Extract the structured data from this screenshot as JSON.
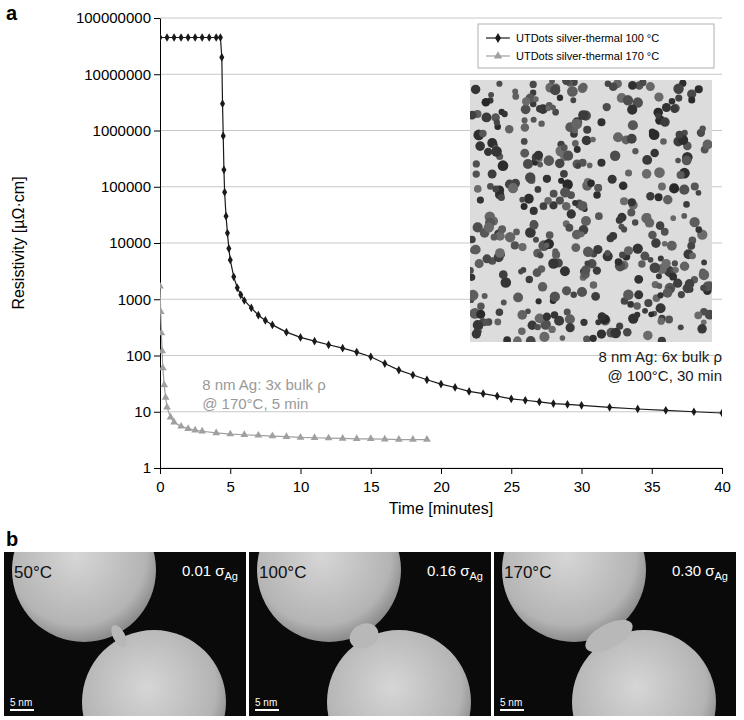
{
  "chart_data": {
    "type": "line",
    "x_label": "Time [minutes]",
    "y_label": "Resistivity [µΩ·cm]",
    "log": "y",
    "grid": true,
    "legend": "top-right",
    "xlim": [
      0,
      40
    ],
    "xticks": [
      0,
      5,
      10,
      15,
      20,
      25,
      30,
      35,
      40
    ],
    "ylim": [
      1,
      100000000
    ],
    "yticks": [
      1,
      10,
      100,
      1000,
      10000,
      100000,
      1000000,
      10000000,
      100000000
    ],
    "series": [
      {
        "name": "UTDots silver-thermal 100 °C",
        "color": "#1a1a1a",
        "marker": "diamond",
        "line_style": "solid",
        "x": [
          0,
          0.5,
          1,
          1.5,
          2,
          2.5,
          3,
          3.5,
          4,
          4.3,
          4.4,
          4.45,
          4.5,
          4.55,
          4.6,
          4.7,
          4.8,
          4.9,
          5,
          5.25,
          5.5,
          5.75,
          6,
          6.5,
          7,
          7.5,
          8,
          9,
          10,
          11,
          12,
          13,
          14,
          15,
          16,
          17,
          18,
          19,
          20,
          21,
          22,
          23,
          24,
          25,
          26,
          27,
          28,
          29,
          30,
          32,
          34,
          36,
          38,
          40
        ],
        "values": [
          45000000,
          45000000,
          45000000,
          45000000,
          45000000,
          45000000,
          45000000,
          45000000,
          45000000,
          45000000,
          20000000,
          3000000,
          800000,
          200000,
          80000,
          30000,
          15000,
          8000,
          5000,
          2500,
          1600,
          1200,
          950,
          700,
          520,
          420,
          350,
          260,
          210,
          180,
          155,
          135,
          115,
          95,
          72,
          55,
          45,
          37,
          31,
          27,
          23,
          21,
          19,
          17,
          16,
          15,
          14,
          13.5,
          13,
          12,
          11.2,
          10.6,
          10,
          9.5
        ]
      },
      {
        "name": "UTDots silver-thermal 170 °C",
        "color": "#a0a0a0",
        "marker": "triangle",
        "line_style": "solid",
        "x": [
          0,
          0.05,
          0.1,
          0.15,
          0.2,
          0.3,
          0.4,
          0.5,
          0.75,
          1,
          1.5,
          2,
          2.5,
          3,
          4,
          5,
          6,
          7,
          8,
          9,
          10,
          11,
          12,
          13,
          14,
          15,
          16,
          17,
          18,
          19
        ],
        "values": [
          1700,
          600,
          250,
          120,
          60,
          30,
          18,
          12,
          8,
          6.5,
          5.5,
          5,
          4.7,
          4.5,
          4.2,
          4,
          3.9,
          3.8,
          3.7,
          3.6,
          3.5,
          3.45,
          3.4,
          3.35,
          3.3,
          3.3,
          3.25,
          3.2,
          3.2,
          3.2
        ]
      }
    ],
    "annotations": [
      {
        "text": "8 nm Ag: 3x bulk ρ",
        "color": "#999999"
      },
      {
        "text": "@ 170°C, 5 min",
        "color": "#999999"
      },
      {
        "text": "8 nm Ag: 6x bulk ρ",
        "color": "#1a1a1a"
      },
      {
        "text": "@ 100°C, 30 min",
        "color": "#1a1a1a"
      }
    ]
  },
  "panel_labels": [
    "a",
    "b"
  ],
  "micrographs": [
    {
      "temperature": "50°C",
      "conductivity": "0.01 σ",
      "subscript": "Ag",
      "scale_bar": "5 nm"
    },
    {
      "temperature": "100°C",
      "conductivity": "0.16 σ",
      "subscript": "Ag",
      "scale_bar": "5 nm"
    },
    {
      "temperature": "170°C",
      "conductivity": "0.30 σ",
      "subscript": "Ag",
      "scale_bar": "5 nm"
    }
  ]
}
